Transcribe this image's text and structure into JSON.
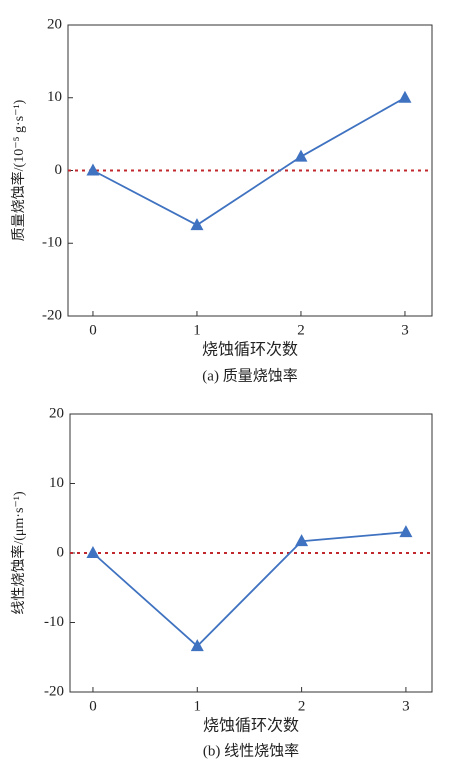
{
  "chart_data": [
    {
      "type": "line",
      "title": "(a) 质量烧蚀率",
      "x_label": "烧蚀循环次数",
      "y_label": "质量烧蚀率/(10⁻⁵ g·s⁻¹)",
      "x": [
        0,
        1,
        2,
        3
      ],
      "series": [
        {
          "name": "质量烧蚀率",
          "color": "#3f72c0",
          "values": [
            0,
            -7.5,
            1.9,
            10
          ]
        }
      ],
      "xlim": [
        -0.24,
        3.26
      ],
      "xticks": [
        0,
        1,
        2,
        3
      ],
      "ylim": [
        -20,
        20
      ],
      "yticks": [
        -20,
        -10,
        0,
        10,
        20
      ],
      "reference_line": {
        "value": 0,
        "color": "#c0282d"
      }
    },
    {
      "type": "line",
      "title": "(b) 线性烧蚀率",
      "x_label": "烧蚀循环次数",
      "y_label": "线性烧蚀率/(μm·s⁻¹)",
      "x": [
        0,
        1,
        2,
        3
      ],
      "series": [
        {
          "name": "线性烧蚀率",
          "color": "#3f72c0",
          "values": [
            0,
            -13.4,
            1.7,
            3.0
          ]
        }
      ],
      "xlim": [
        -0.22,
        3.25
      ],
      "xticks": [
        0,
        1,
        2,
        3
      ],
      "ylim": [
        -20,
        20
      ],
      "yticks": [
        -20,
        -10,
        0,
        10,
        20
      ],
      "reference_line": {
        "value": 0,
        "color": "#c0282d"
      }
    }
  ]
}
